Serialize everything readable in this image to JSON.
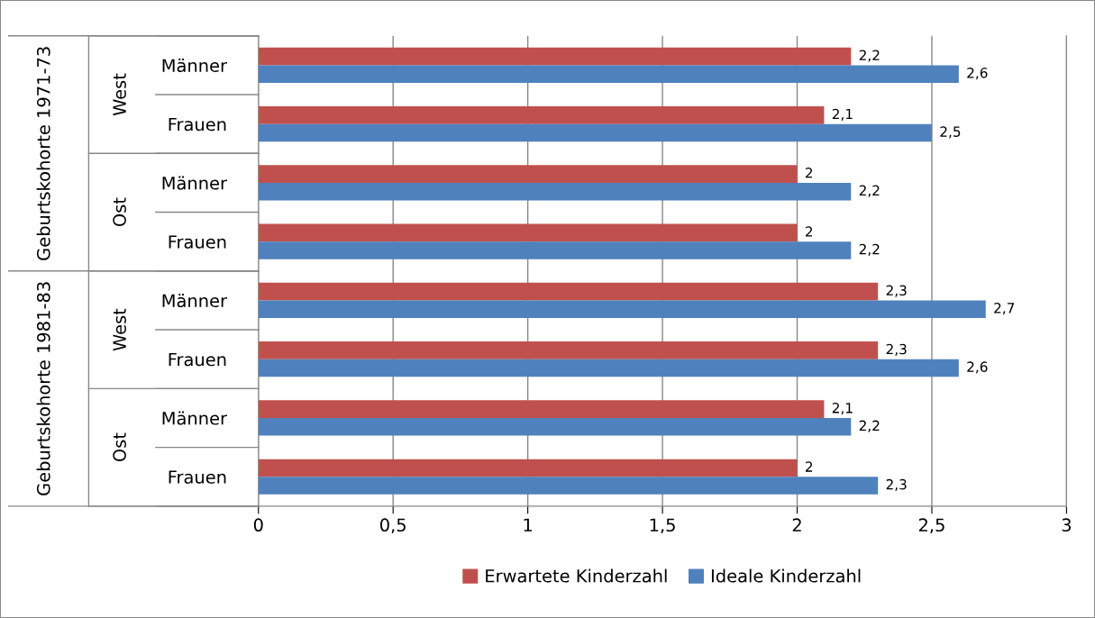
{
  "chart_data": {
    "type": "bar",
    "orientation": "horizontal",
    "categories": [
      "Männer",
      "Frauen",
      "Männer",
      "Frauen",
      "Männer",
      "Frauen",
      "Männer",
      "Frauen"
    ],
    "annotations": [
      "Geburtskohorte 1971-73",
      "Geburtskohorte 1981-83",
      "West",
      "Ost",
      "West",
      "Ost"
    ],
    "series": [
      {
        "name": "Erwartete Kinderzahl",
        "color": "#c0504d",
        "values": [
          2.2,
          2.1,
          2,
          2,
          2.3,
          2.3,
          2.1,
          2
        ],
        "value_labels": [
          "2,2",
          "2,1",
          "2",
          "2",
          "2,3",
          "2,3",
          "2,1",
          "2"
        ]
      },
      {
        "name": "Ideale Kinderzahl",
        "color": "#4f81bd",
        "values": [
          2.6,
          2.5,
          2.2,
          2.2,
          2.7,
          2.6,
          2.2,
          2.3
        ],
        "value_labels": [
          "2,6",
          "2,5",
          "2,2",
          "2,2",
          "2,7",
          "2,6",
          "2,2",
          "2,3"
        ]
      }
    ],
    "xlim": [
      0,
      3
    ],
    "xticks": [
      0,
      {
        "value": 0.5,
        "label": "0,5"
      },
      1,
      {
        "value": 1.5,
        "label": "1,5"
      },
      2,
      {
        "value": 2.5,
        "label": "2,5"
      },
      3
    ],
    "grid": "x",
    "legend": "bottom"
  }
}
